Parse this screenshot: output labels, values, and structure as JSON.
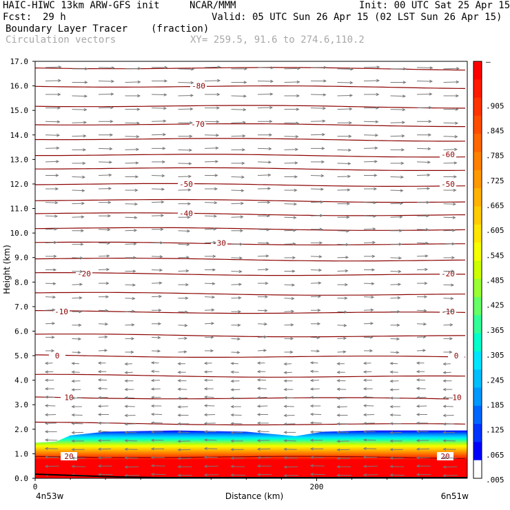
{
  "header": {
    "model": "HAIC-HIWC 13km ARW-GFS init",
    "org": "NCAR/MMM",
    "init": "Init: 00 UTC Sat 25 Apr 15",
    "fcst_label": "Fcst:",
    "fcst_value": "29 h",
    "valid": "Valid: 05 UTC Sun 26 Apr 15 (02 LST Sun 26 Apr 15)",
    "field_name": "Boundary Layer Tracer",
    "field_units": "(fraction)",
    "vector_field": "Circulation vectors",
    "xy": "XY= 259.5, 91.6 to 274.6,110.2"
  },
  "chart_data": {
    "type": "heatmap",
    "xlabel": "Distance (km)",
    "ylabel": "Height (km)",
    "xlim": [
      0,
      307
    ],
    "ylim": [
      0,
      17
    ],
    "x_ticks": [
      0,
      200
    ],
    "y_ticks": [
      0.0,
      1.0,
      2.0,
      3.0,
      4.0,
      5.0,
      6.0,
      7.0,
      8.0,
      9.0,
      10.0,
      11.0,
      12.0,
      13.0,
      14.0,
      15.0,
      16.0,
      17.0
    ],
    "x_left_label": "4n53w",
    "x_right_label": "6n51w",
    "colorbar": {
      "labels": [
        "–",
        ".905",
        ".845",
        ".785",
        ".725",
        ".665",
        ".605",
        ".545",
        ".485",
        ".425",
        ".365",
        ".305",
        ".245",
        ".185",
        ".125",
        ".065",
        ".005"
      ],
      "colors": [
        "#ff0000",
        "#ff1a00",
        "#ff3300",
        "#ff4d00",
        "#ff6600",
        "#ff8000",
        "#ff9900",
        "#ffb300",
        "#ffcc00",
        "#ffe600",
        "#f5ff00",
        "#ccff00",
        "#99ff33",
        "#66ff66",
        "#33ff99",
        "#00ffcc",
        "#00e6ff",
        "#00bfff",
        "#0099ff",
        "#0066ff",
        "#0033ff",
        "#0000ff",
        "#ffffff"
      ]
    },
    "tracer_top_km": [
      {
        "x": 0,
        "top": 1.45
      },
      {
        "x": 15,
        "top": 1.5
      },
      {
        "x": 25,
        "top": 1.75
      },
      {
        "x": 50,
        "top": 1.9
      },
      {
        "x": 100,
        "top": 1.95
      },
      {
        "x": 150,
        "top": 1.9
      },
      {
        "x": 185,
        "top": 1.72
      },
      {
        "x": 205,
        "top": 1.9
      },
      {
        "x": 240,
        "top": 1.95
      },
      {
        "x": 307,
        "top": 1.95
      }
    ],
    "temperature_contours": [
      {
        "label": "-80",
        "height": 16.0
      },
      {
        "label": "-70",
        "height": 14.45
      },
      {
        "label": "-60",
        "height": 13.2
      },
      {
        "label": "-50",
        "height": 12.0
      },
      {
        "label": "-40",
        "height": 10.8
      },
      {
        "label": "-30",
        "height": 9.6
      },
      {
        "label": "-20",
        "height": 8.35
      },
      {
        "label": "-10",
        "height": 6.8
      },
      {
        "label": "0",
        "height": 5.0
      },
      {
        "label": "10",
        "height": 3.3
      },
      {
        "label": "20",
        "height": 0.9
      }
    ],
    "unlabeled_contour_heights": [
      16.75,
      15.2,
      13.85,
      12.65,
      11.35,
      10.2,
      8.95,
      7.55,
      5.85,
      4.2,
      2.25
    ],
    "vectors": {
      "upper": {
        "from_km": 5.2,
        "to_km": 16.9,
        "direction": "east"
      },
      "lower": {
        "from_km": 0.15,
        "to_km": 4.9,
        "direction": "west"
      }
    }
  }
}
